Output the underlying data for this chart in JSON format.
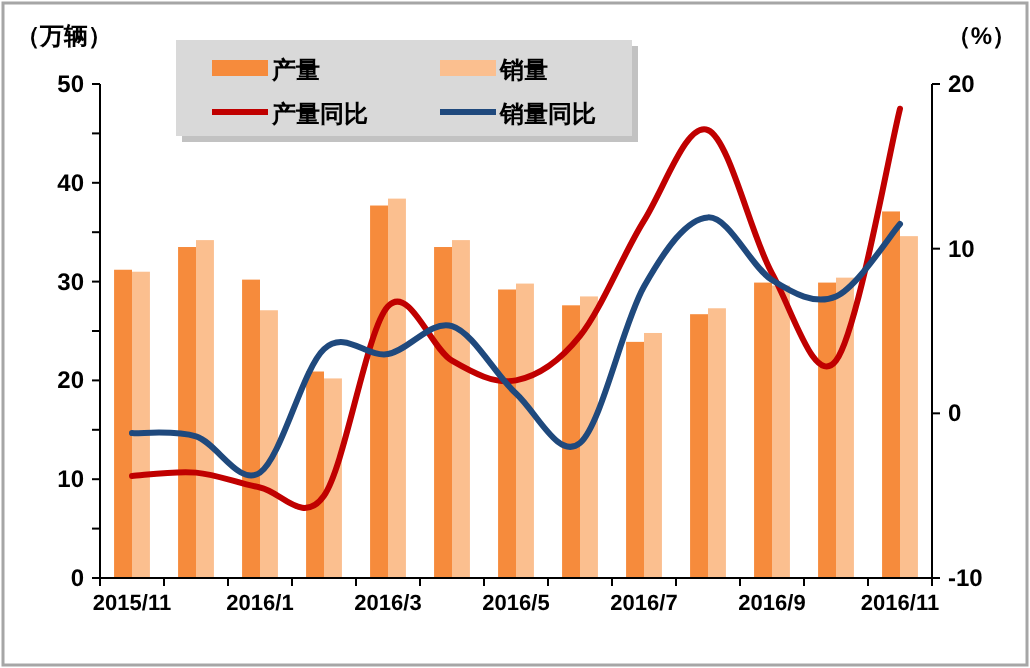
{
  "chart_data": {
    "type": "bar",
    "ylabel": "（万辆）",
    "y2label": "（%）",
    "categories": [
      "2015/11",
      null,
      "2016/1",
      null,
      "2016/3",
      null,
      "2016/5",
      null,
      "2016/7",
      null,
      "2016/9",
      null,
      "2016/11"
    ],
    "series": [
      {
        "name": "产量",
        "color": "#f68b3c",
        "values": [
          31.2,
          33.5,
          30.2,
          20.9,
          37.7,
          33.5,
          29.2,
          27.6,
          23.9,
          26.7,
          29.9,
          29.9,
          37.1
        ]
      },
      {
        "name": "销量",
        "color": "#fbbf8f",
        "values": [
          31.0,
          34.2,
          27.1,
          20.2,
          38.4,
          34.2,
          29.8,
          28.5,
          24.8,
          27.3,
          29.6,
          30.4,
          34.6
        ]
      },
      {
        "name": "产量同比",
        "type": "line",
        "axis": "y2",
        "color": "#c00000",
        "values": [
          -3.8,
          -3.6,
          -4.5,
          -5.0,
          6.5,
          3.2,
          2.0,
          4.7,
          11.7,
          17.2,
          8.5,
          3.2,
          18.5
        ]
      },
      {
        "name": "销量同比",
        "type": "line",
        "axis": "y2",
        "color": "#1f497d",
        "values": [
          -1.2,
          -1.4,
          -3.6,
          3.9,
          3.6,
          5.3,
          1.2,
          -1.8,
          7.7,
          11.9,
          8.1,
          7.1,
          11.5
        ]
      }
    ],
    "ylim": [
      0,
      50
    ],
    "yticks": [
      0,
      {
        "value": 5,
        "label": null
      },
      10,
      {
        "value": 15,
        "label": null
      },
      20,
      {
        "value": 25,
        "label": null
      },
      30,
      {
        "value": 35,
        "label": null
      },
      40,
      {
        "value": 45,
        "label": null
      },
      50
    ],
    "y2lim": [
      -10,
      20
    ],
    "y2ticks": [
      -10,
      0,
      10,
      20
    ],
    "legend": "top left"
  }
}
